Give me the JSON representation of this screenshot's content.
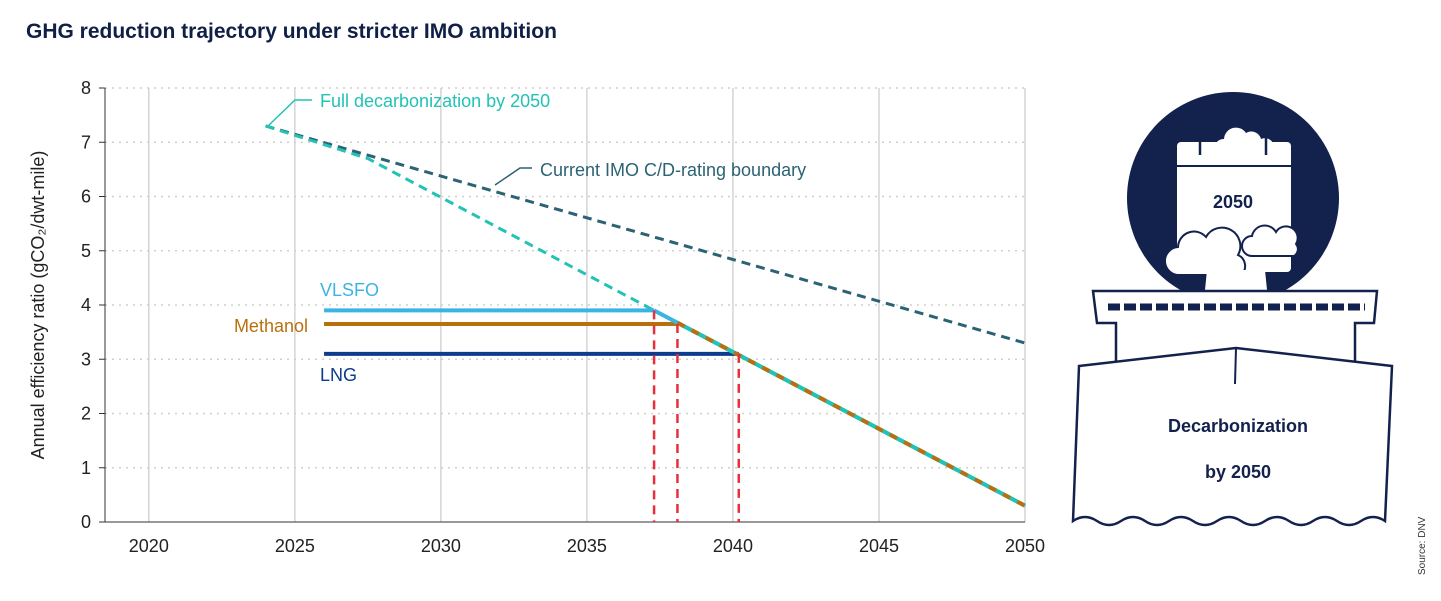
{
  "title": "GHG reduction trajectory under stricter IMO ambition",
  "source": "Source: DNV",
  "illustration": {
    "calendar_year": "2050",
    "banner_line1": "Decarbonization",
    "banner_line2": "by 2050",
    "color": "#13214d"
  },
  "chart_data": {
    "type": "line",
    "title": "GHG reduction trajectory under stricter IMO ambition",
    "xlabel": "",
    "ylabel": "Annual efficiency ratio (gCO₂/dwt-mile)",
    "xlim": [
      2018.5,
      2050
    ],
    "ylim": [
      0,
      8
    ],
    "xticks": [
      2020,
      2025,
      2030,
      2035,
      2040,
      2045,
      2050
    ],
    "yticks": [
      0,
      1,
      2,
      3,
      4,
      5,
      6,
      7,
      8
    ],
    "grid": true,
    "series": [
      {
        "name": "Current IMO C/D-rating boundary",
        "style": "dashed",
        "color": "#2b6274",
        "x": [
          2024,
          2050
        ],
        "y": [
          7.3,
          3.3
        ]
      },
      {
        "name": "Full decarbonization by 2050",
        "style": "dashed-then-solid",
        "color": "#22c2b5",
        "x": [
          2024,
          2027.5,
          2037.3,
          2050
        ],
        "y": [
          7.3,
          6.7,
          3.9,
          0.3
        ]
      },
      {
        "name": "VLSFO",
        "color": "#3ab4e2",
        "x": [
          2026,
          2037.3
        ],
        "y": [
          3.9,
          3.9
        ]
      },
      {
        "name": "Methanol",
        "color": "#b8700f",
        "x": [
          2026,
          2038.1
        ],
        "y": [
          3.65,
          3.65
        ]
      },
      {
        "name": "LNG",
        "color": "#0e3b8c",
        "x": [
          2026,
          2040.2
        ],
        "y": [
          3.1,
          3.1
        ]
      }
    ],
    "markers": {
      "color": "#e8303a",
      "x": [
        2037.3,
        2038.1,
        2040.2
      ],
      "y": [
        3.9,
        3.65,
        3.1
      ]
    }
  }
}
